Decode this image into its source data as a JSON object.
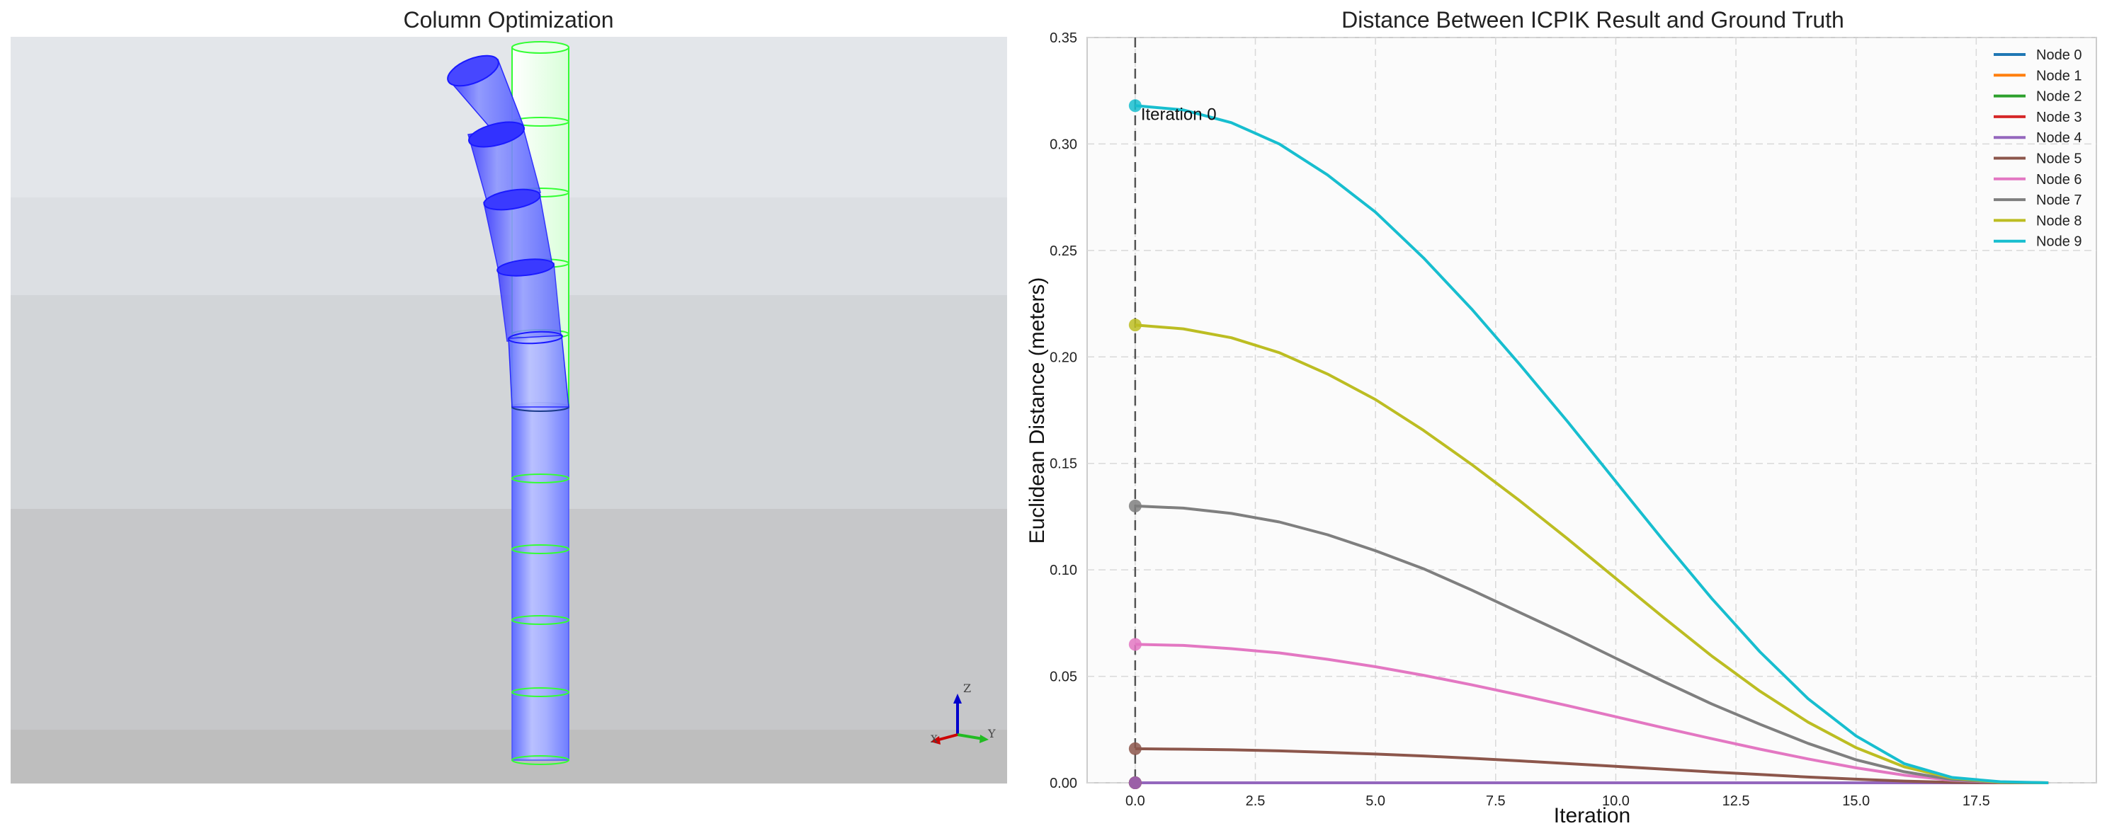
{
  "left_panel": {
    "title": "Column Optimization",
    "axis_labels": {
      "z": "Z",
      "y": "Y",
      "x": "X"
    },
    "colors": {
      "bent_column": "#3b3bff",
      "straight_column": "#7b8cff",
      "target_outline": "#33ff33",
      "background_top": "#e3e6ea",
      "background_bottom": "#bdbdbd"
    }
  },
  "chart_data": {
    "type": "line",
    "title": "Distance Between ICPIK Result and Ground Truth",
    "xlabel": "Iteration",
    "ylabel": "Euclidean Distance (meters)",
    "xlim": [
      -1,
      20
    ],
    "ylim": [
      0,
      0.35
    ],
    "xticks": [
      0.0,
      2.5,
      5.0,
      7.5,
      10.0,
      12.5,
      15.0,
      17.5
    ],
    "yticks": [
      0.0,
      0.05,
      0.1,
      0.15,
      0.2,
      0.25,
      0.3,
      0.35
    ],
    "xtick_labels": [
      "0.0",
      "2.5",
      "5.0",
      "7.5",
      "10.0",
      "12.5",
      "15.0",
      "17.5"
    ],
    "ytick_labels": [
      "0.00",
      "0.05",
      "0.10",
      "0.15",
      "0.20",
      "0.25",
      "0.30",
      "0.35"
    ],
    "grid": true,
    "legend_position": "top-right",
    "x": [
      0,
      1,
      2,
      3,
      4,
      5,
      6,
      7,
      8,
      9,
      10,
      11,
      12,
      13,
      14,
      15,
      16,
      17,
      18,
      19
    ],
    "series": [
      {
        "name": "Node 0",
        "color": "#1f77b4",
        "values": [
          0,
          0,
          0,
          0,
          0,
          0,
          0,
          0,
          0,
          0,
          0,
          0,
          0,
          0,
          0,
          0,
          0,
          0,
          0,
          0
        ]
      },
      {
        "name": "Node 1",
        "color": "#ff7f0e",
        "values": [
          0,
          0,
          0,
          0,
          0,
          0,
          0,
          0,
          0,
          0,
          0,
          0,
          0,
          0,
          0,
          0,
          0,
          0,
          0,
          0
        ]
      },
      {
        "name": "Node 2",
        "color": "#2ca02c",
        "values": [
          0,
          0,
          0,
          0,
          0,
          0,
          0,
          0,
          0,
          0,
          0,
          0,
          0,
          0,
          0,
          0,
          0,
          0,
          0,
          0
        ]
      },
      {
        "name": "Node 3",
        "color": "#d62728",
        "values": [
          0,
          0,
          0,
          0,
          0,
          0,
          0,
          0,
          0,
          0,
          0,
          0,
          0,
          0,
          0,
          0,
          0,
          0,
          0,
          0
        ]
      },
      {
        "name": "Node 4",
        "color": "#9467bd",
        "values": [
          0,
          0,
          0,
          0,
          0,
          0,
          0,
          0,
          0,
          0,
          0,
          0,
          0,
          0,
          0,
          0,
          0,
          0,
          0,
          0
        ]
      },
      {
        "name": "Node 5",
        "color": "#8c564b",
        "values": [
          0.016,
          0.0158,
          0.0155,
          0.015,
          0.0143,
          0.0135,
          0.0126,
          0.0115,
          0.0103,
          0.009,
          0.0077,
          0.0064,
          0.0051,
          0.0039,
          0.0027,
          0.0017,
          0.0008,
          0.0002,
          0.0,
          0.0
        ]
      },
      {
        "name": "Node 6",
        "color": "#e377c2",
        "values": [
          0.065,
          0.0645,
          0.063,
          0.061,
          0.058,
          0.0545,
          0.0505,
          0.046,
          0.0412,
          0.0362,
          0.031,
          0.0258,
          0.0207,
          0.0158,
          0.0112,
          0.007,
          0.0036,
          0.0012,
          0.0002,
          0.0
        ]
      },
      {
        "name": "Node 7",
        "color": "#7f7f7f",
        "values": [
          0.13,
          0.129,
          0.1265,
          0.1225,
          0.1165,
          0.109,
          0.1005,
          0.0905,
          0.08,
          0.0695,
          0.0585,
          0.0475,
          0.037,
          0.0275,
          0.0185,
          0.0108,
          0.0052,
          0.0015,
          0.0002,
          0.0
        ]
      },
      {
        "name": "Node 8",
        "color": "#bcbd22",
        "values": [
          0.215,
          0.2132,
          0.209,
          0.202,
          0.192,
          0.18,
          0.1655,
          0.1495,
          0.1325,
          0.1145,
          0.096,
          0.0775,
          0.0595,
          0.043,
          0.0285,
          0.0165,
          0.0075,
          0.0022,
          0.0003,
          0.0
        ]
      },
      {
        "name": "Node 9",
        "color": "#17becf",
        "values": [
          0.318,
          0.316,
          0.31,
          0.3,
          0.2855,
          0.268,
          0.2465,
          0.2225,
          0.1965,
          0.1695,
          0.1415,
          0.1135,
          0.0865,
          0.0615,
          0.0395,
          0.022,
          0.009,
          0.0025,
          0.0005,
          0.0
        ]
      }
    ],
    "annotation": {
      "text": "Iteration 0",
      "x": 0,
      "line_style": "dashed",
      "line_color": "#555555"
    }
  }
}
